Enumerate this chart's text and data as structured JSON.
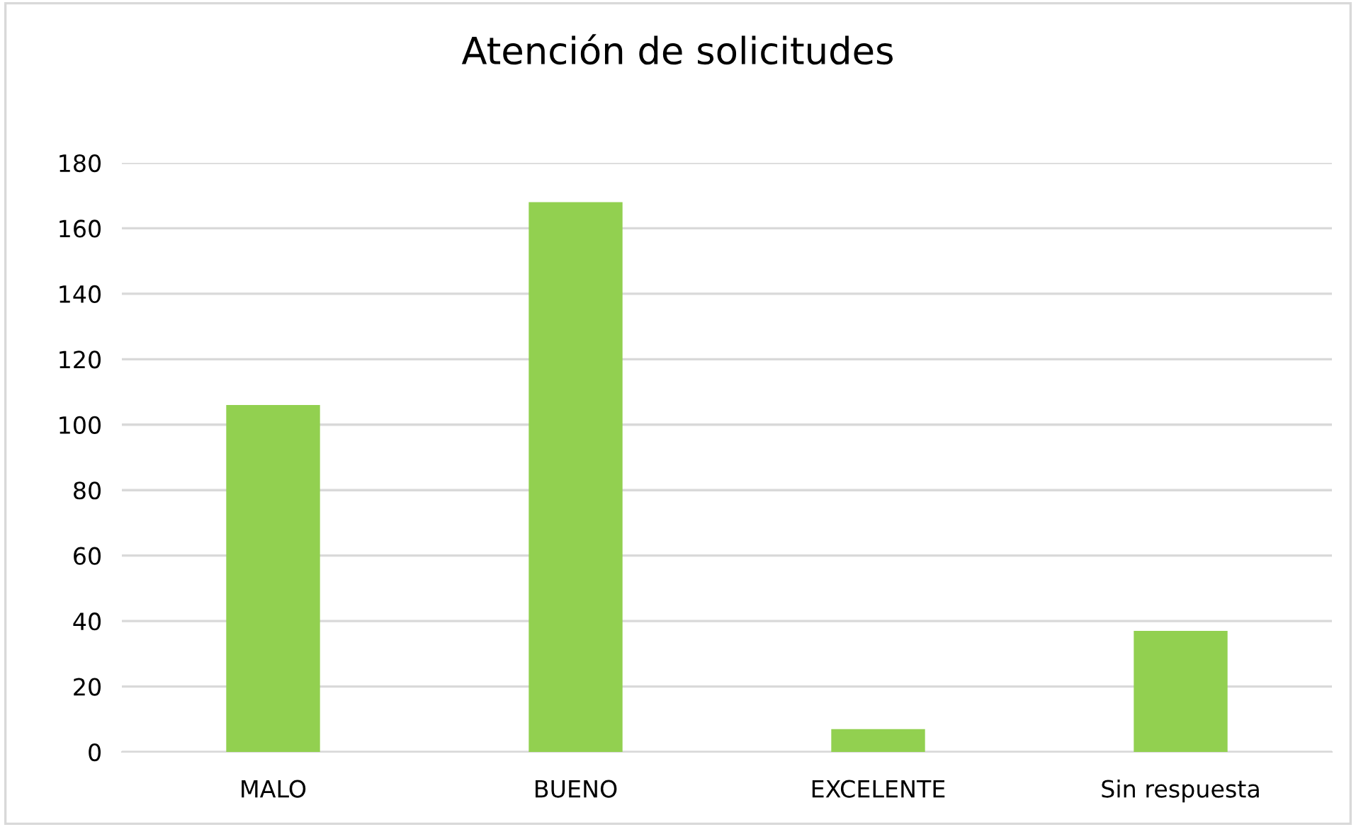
{
  "chart_data": {
    "type": "bar",
    "title": "Atención de solicitudes",
    "categories": [
      "MALO",
      "BUENO",
      "EXCELENTE",
      "Sin respuesta"
    ],
    "values": [
      106,
      168,
      7,
      37
    ],
    "color": "#92d050",
    "ylim": [
      0,
      180
    ],
    "yticks": [
      0,
      20,
      40,
      60,
      80,
      100,
      120,
      140,
      160,
      180
    ],
    "grid": "y",
    "legend": false
  }
}
